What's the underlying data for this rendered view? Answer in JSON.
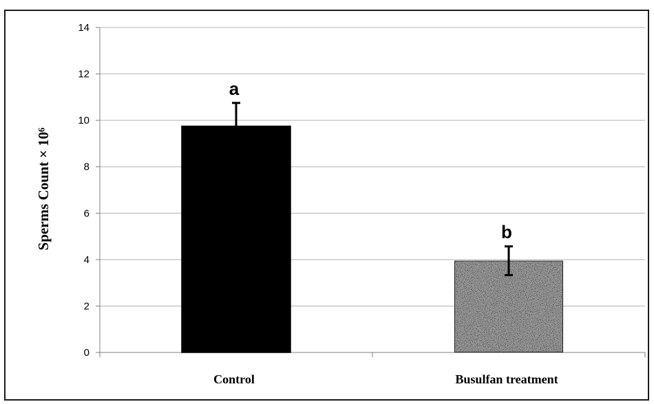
{
  "chart_data": {
    "type": "bar",
    "categories": [
      "Control",
      "Busulfan treatment"
    ],
    "values": [
      9.75,
      3.95
    ],
    "errors": [
      1.0,
      0.62
    ],
    "significance_labels": [
      "a",
      "b"
    ],
    "ylabel": "Sperms Count × 10⁶",
    "ylim": [
      0,
      14
    ],
    "yticks": [
      0,
      2,
      4,
      6,
      8,
      10,
      12,
      14
    ],
    "grid": true,
    "legend": "none",
    "bar_styles": [
      "solid-black",
      "gray-speckled"
    ],
    "colors": {
      "control_bar": "#000000",
      "busulfan_bar": "#9a9a9a",
      "grid": "#b0b0b0",
      "axis": "#7f7f7f"
    }
  }
}
